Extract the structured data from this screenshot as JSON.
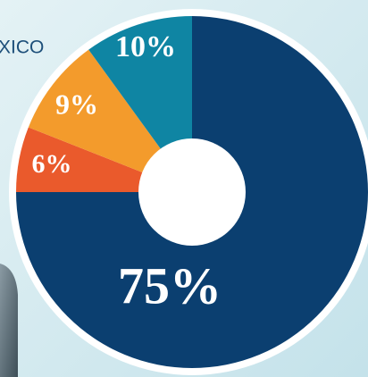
{
  "header": {
    "text": "XICO"
  },
  "chart_data": {
    "type": "pie",
    "values": [
      75,
      6,
      9,
      10
    ],
    "value_labels": [
      "75%",
      "6%",
      "9%",
      "10%"
    ],
    "colors": [
      "#0b3f70",
      "#ea5a2c",
      "#f39b2c",
      "#0f85a3"
    ]
  }
}
